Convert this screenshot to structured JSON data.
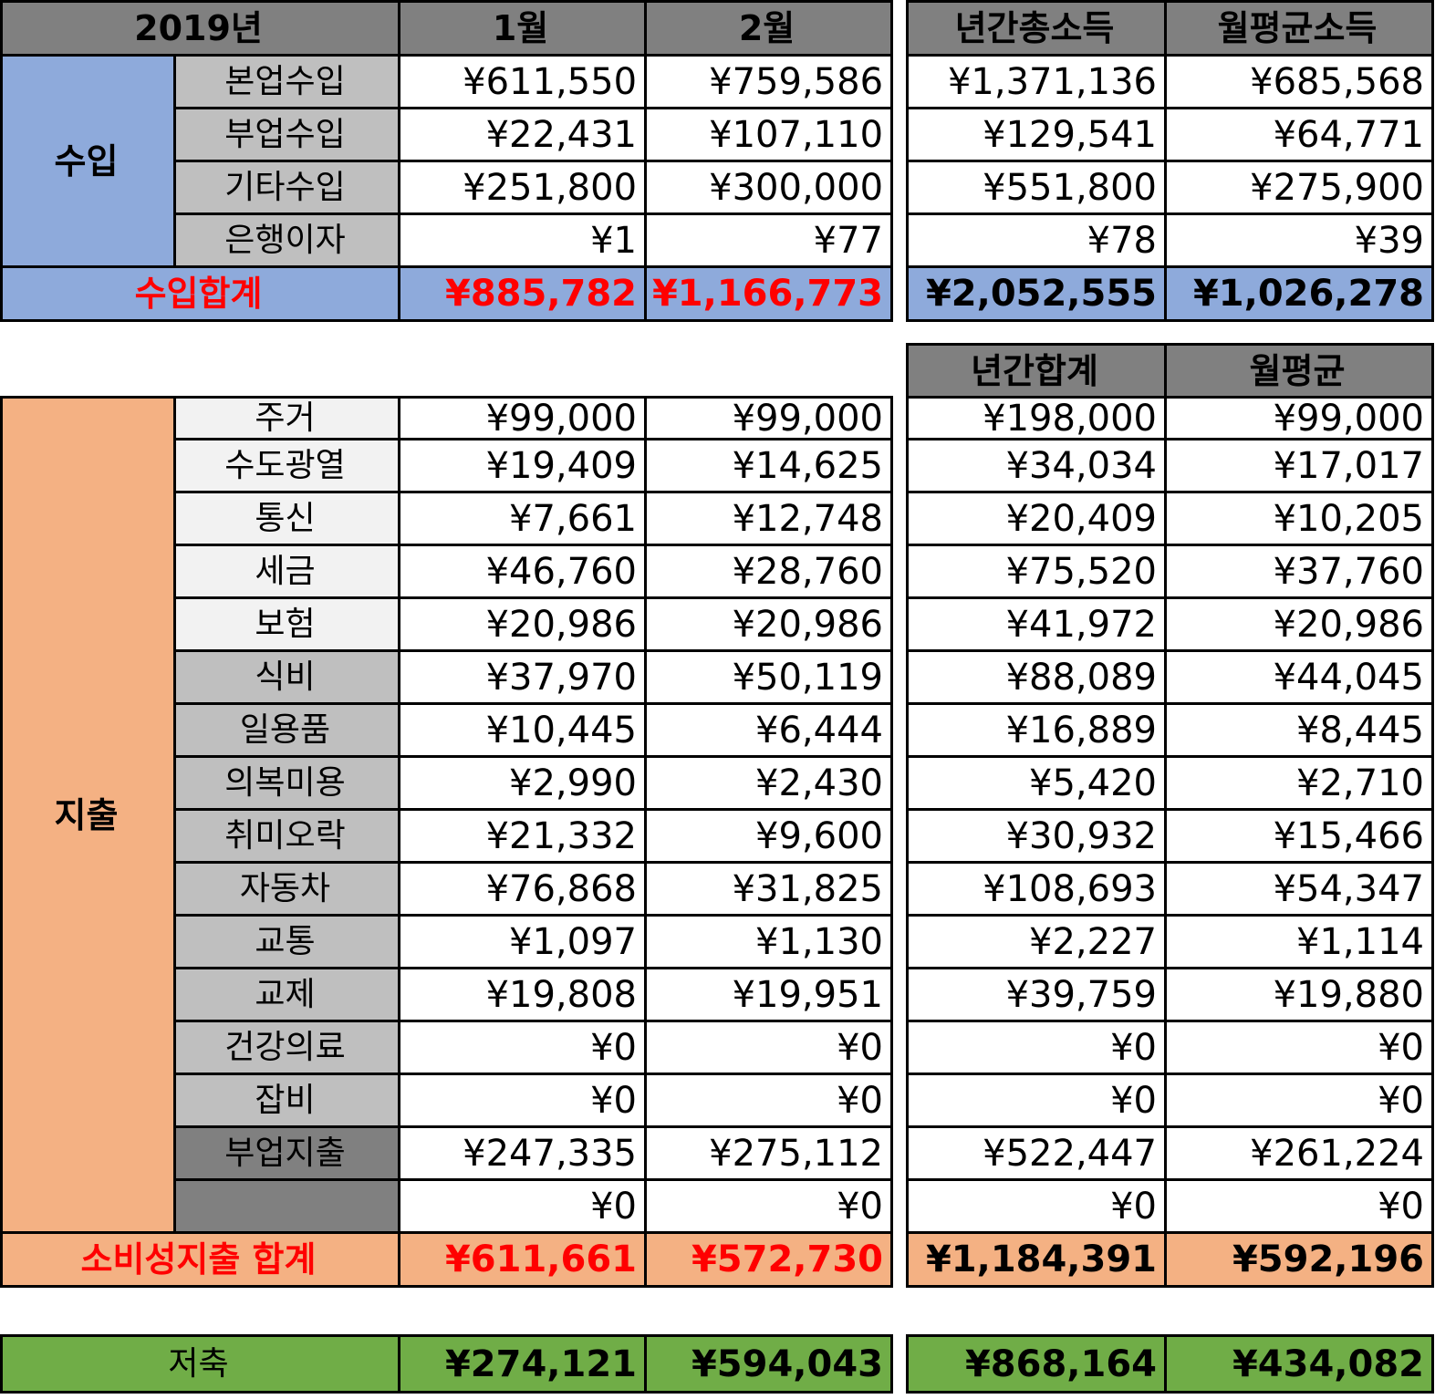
{
  "header": {
    "year": "2019년",
    "months": [
      "1월",
      "2월"
    ],
    "annual_total_income": "년간총소득",
    "monthly_avg_income": "월평균소득",
    "annual_total": "년간합계",
    "monthly_avg": "월평균"
  },
  "income": {
    "category": "수입",
    "rows": [
      {
        "label": "본업수입",
        "m1": "¥611,550",
        "m2": "¥759,586",
        "annual": "¥1,371,136",
        "avg": "¥685,568"
      },
      {
        "label": "부업수입",
        "m1": "¥22,431",
        "m2": "¥107,110",
        "annual": "¥129,541",
        "avg": "¥64,771"
      },
      {
        "label": "기타수입",
        "m1": "¥251,800",
        "m2": "¥300,000",
        "annual": "¥551,800",
        "avg": "¥275,900"
      },
      {
        "label": "은행이자",
        "m1": "¥1",
        "m2": "¥77",
        "annual": "¥78",
        "avg": "¥39"
      }
    ],
    "total": {
      "label": "수입합계",
      "m1": "¥885,782",
      "m2": "¥1,166,773",
      "annual": "¥2,052,555",
      "avg": "¥1,026,278"
    }
  },
  "expense": {
    "category": "지출",
    "rows": [
      {
        "label": "주거",
        "m1": "¥99,000",
        "m2": "¥99,000",
        "annual": "¥198,000",
        "avg": "¥99,000",
        "shade": "light"
      },
      {
        "label": "수도광열",
        "m1": "¥19,409",
        "m2": "¥14,625",
        "annual": "¥34,034",
        "avg": "¥17,017",
        "shade": "light"
      },
      {
        "label": "통신",
        "m1": "¥7,661",
        "m2": "¥12,748",
        "annual": "¥20,409",
        "avg": "¥10,205",
        "shade": "light"
      },
      {
        "label": "세금",
        "m1": "¥46,760",
        "m2": "¥28,760",
        "annual": "¥75,520",
        "avg": "¥37,760",
        "shade": "light"
      },
      {
        "label": "보험",
        "m1": "¥20,986",
        "m2": "¥20,986",
        "annual": "¥41,972",
        "avg": "¥20,986",
        "shade": "light"
      },
      {
        "label": "식비",
        "m1": "¥37,970",
        "m2": "¥50,119",
        "annual": "¥88,089",
        "avg": "¥44,045",
        "shade": "mid"
      },
      {
        "label": "일용품",
        "m1": "¥10,445",
        "m2": "¥6,444",
        "annual": "¥16,889",
        "avg": "¥8,445",
        "shade": "mid"
      },
      {
        "label": "의복미용",
        "m1": "¥2,990",
        "m2": "¥2,430",
        "annual": "¥5,420",
        "avg": "¥2,710",
        "shade": "mid"
      },
      {
        "label": "취미오락",
        "m1": "¥21,332",
        "m2": "¥9,600",
        "annual": "¥30,932",
        "avg": "¥15,466",
        "shade": "mid"
      },
      {
        "label": "자동차",
        "m1": "¥76,868",
        "m2": "¥31,825",
        "annual": "¥108,693",
        "avg": "¥54,347",
        "shade": "mid"
      },
      {
        "label": "교통",
        "m1": "¥1,097",
        "m2": "¥1,130",
        "annual": "¥2,227",
        "avg": "¥1,114",
        "shade": "mid"
      },
      {
        "label": "교제",
        "m1": "¥19,808",
        "m2": "¥19,951",
        "annual": "¥39,759",
        "avg": "¥19,880",
        "shade": "mid"
      },
      {
        "label": "건강의료",
        "m1": "¥0",
        "m2": "¥0",
        "annual": "¥0",
        "avg": "¥0",
        "shade": "mid"
      },
      {
        "label": "잡비",
        "m1": "¥0",
        "m2": "¥0",
        "annual": "¥0",
        "avg": "¥0",
        "shade": "mid"
      },
      {
        "label": "부업지출",
        "m1": "¥247,335",
        "m2": "¥275,112",
        "annual": "¥522,447",
        "avg": "¥261,224",
        "shade": "dark"
      },
      {
        "label": "",
        "m1": "¥0",
        "m2": "¥0",
        "annual": "¥0",
        "avg": "¥0",
        "shade": "dark"
      }
    ],
    "total": {
      "label": "소비성지출 합계",
      "m1": "¥611,661",
      "m2": "¥572,730",
      "annual": "¥1,184,391",
      "avg": "¥592,196"
    }
  },
  "savings": {
    "label": "저축",
    "m1": "¥274,121",
    "m2": "¥594,043",
    "annual": "¥868,164",
    "avg": "¥434,082"
  }
}
